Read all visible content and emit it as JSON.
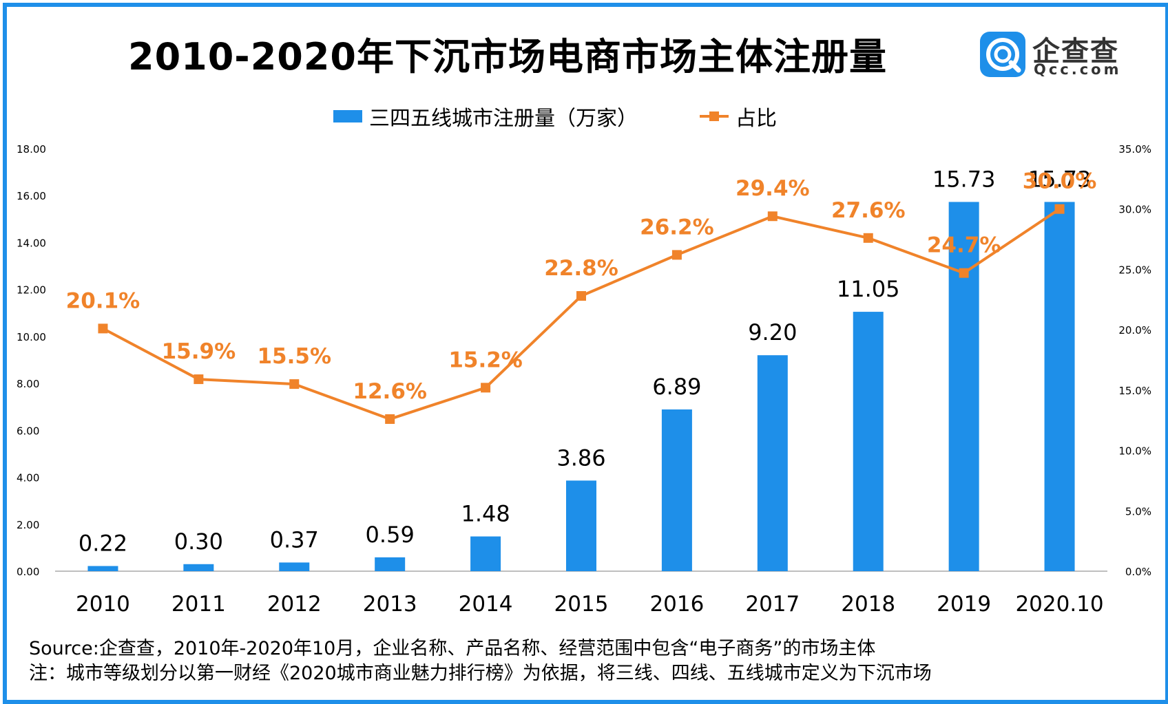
{
  "title": "2010-2020年下沉市场电商市场主体注册量",
  "logo": {
    "name": "企查查",
    "domain": "Qcc.com"
  },
  "colors": {
    "bar": "#1E8FE9",
    "line": "#F0832A",
    "frame": "#1E8FE9"
  },
  "chart_data": {
    "type": "bar",
    "categories": [
      "2010",
      "2011",
      "2012",
      "2013",
      "2014",
      "2015",
      "2016",
      "2017",
      "2018",
      "2019",
      "2020.10"
    ],
    "series": [
      {
        "name": "三四五线城市注册量（万家）",
        "type": "bar",
        "axis": "left",
        "values": [
          0.22,
          0.3,
          0.37,
          0.59,
          1.48,
          3.86,
          6.89,
          9.2,
          11.05,
          15.73,
          15.73
        ],
        "labels": [
          "0.22",
          "0.30",
          "0.37",
          "0.59",
          "1.48",
          "3.86",
          "6.89",
          "9.20",
          "11.05",
          "15.73",
          "15.73"
        ]
      },
      {
        "name": "占比",
        "type": "line",
        "axis": "right",
        "values": [
          20.1,
          15.9,
          15.5,
          12.6,
          15.2,
          22.8,
          26.2,
          29.4,
          27.6,
          24.7,
          30.0
        ],
        "labels": [
          "20.1%",
          "15.9%",
          "15.5%",
          "12.6%",
          "15.2%",
          "22.8%",
          "26.2%",
          "29.4%",
          "27.6%",
          "24.7%",
          "30.0%"
        ]
      }
    ],
    "y_left": {
      "min": 0,
      "max": 18,
      "ticks": [
        "0.00",
        "2.00",
        "4.00",
        "6.00",
        "8.00",
        "10.00",
        "12.00",
        "14.00",
        "16.00",
        "18.00"
      ]
    },
    "y_right": {
      "min": 0,
      "max": 35,
      "ticks": [
        "0.0%",
        "5.0%",
        "10.0%",
        "15.0%",
        "20.0%",
        "25.0%",
        "30.0%",
        "35.0%"
      ]
    },
    "legend_position": "top-center",
    "grid": false
  },
  "notes": {
    "source": "Source:企查查，2010年-2020年10月，企业名称、产品名称、经营范围中包含“电子商务”的市场主体",
    "note": "注：城市等级划分以第一财经《2020城市商业魅力排行榜》为依据，将三线、四线、五线城市定义为下沉市场"
  }
}
